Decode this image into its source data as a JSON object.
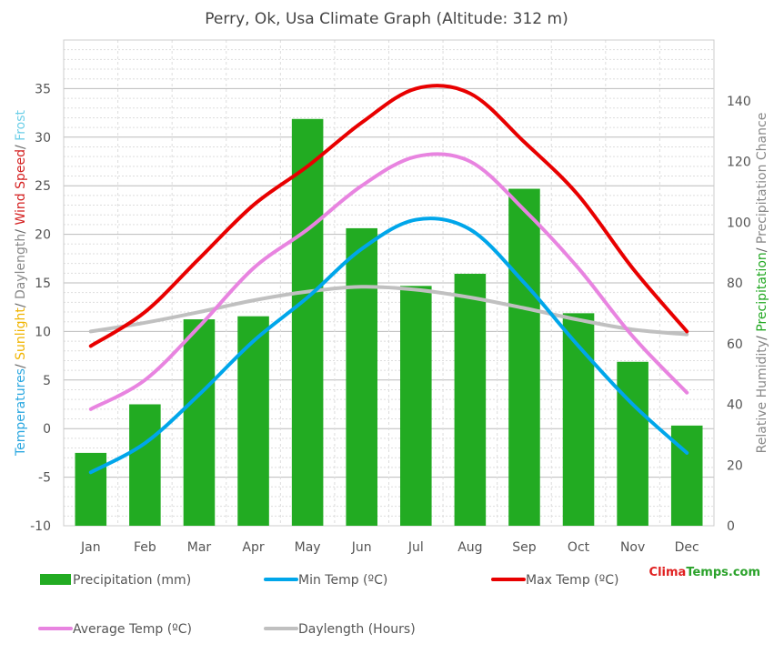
{
  "chart_data": {
    "type": "bar",
    "title": "Perry, Ok, Usa Climate Graph (Altitude: 312 m)",
    "categories": [
      "Jan",
      "Feb",
      "Mar",
      "Apr",
      "May",
      "Jun",
      "Jul",
      "Aug",
      "Sep",
      "Oct",
      "Nov",
      "Dec"
    ],
    "ylabel_left_parts": [
      {
        "text": "Temperatures",
        "color": "#2aa7e0"
      },
      {
        "text": "/ ",
        "color": "#666666"
      },
      {
        "text": "Sunlight",
        "color": "#f0b400"
      },
      {
        "text": "/ ",
        "color": "#666666"
      },
      {
        "text": "Daylength",
        "color": "#888888"
      },
      {
        "text": "/ ",
        "color": "#666666"
      },
      {
        "text": "Wind Speed",
        "color": "#d42020"
      },
      {
        "text": "/ ",
        "color": "#666666"
      },
      {
        "text": "Frost",
        "color": "#6ccfe8"
      }
    ],
    "ylabel_right_parts": [
      {
        "text": "Relative Humidity",
        "color": "#888888"
      },
      {
        "text": "/ ",
        "color": "#666666"
      },
      {
        "text": "Precipitation",
        "color": "#22a822"
      },
      {
        "text": "/ ",
        "color": "#666666"
      },
      {
        "text": "Precipitation Chance",
        "color": "#888888"
      }
    ],
    "ylim_left": [
      -10,
      40
    ],
    "ylim_right": [
      0,
      160
    ],
    "yticks_left": [
      -10,
      -5,
      0,
      5,
      10,
      15,
      20,
      25,
      30,
      35
    ],
    "yticks_right": [
      0,
      20,
      40,
      60,
      80,
      100,
      120,
      140
    ],
    "grid": true,
    "bars": {
      "name": "Precipitation (mm)",
      "axis": "right",
      "color": "#22ab22",
      "values": [
        24,
        40,
        68,
        69,
        134,
        98,
        79,
        83,
        111,
        70,
        54,
        33
      ]
    },
    "series": [
      {
        "name": "Min Temp (ºC)",
        "axis": "left",
        "color": "#00a6ea",
        "values": [
          -4.5,
          -1.5,
          3.5,
          9.0,
          13.5,
          18.5,
          21.5,
          20.5,
          15.0,
          8.5,
          2.5,
          -2.5
        ]
      },
      {
        "name": "Max Temp (ºC)",
        "axis": "left",
        "color": "#e80000",
        "values": [
          8.5,
          12.0,
          17.5,
          23.0,
          27.0,
          31.5,
          35.0,
          34.5,
          29.5,
          24.0,
          16.5,
          10.0
        ]
      },
      {
        "name": "Average Temp (ºC)",
        "axis": "left",
        "color": "#e884e0",
        "values": [
          2.0,
          5.0,
          10.5,
          16.5,
          20.5,
          25.0,
          28.0,
          27.5,
          22.5,
          16.5,
          9.5,
          3.7
        ]
      },
      {
        "name": "Daylength (Hours)",
        "axis": "left",
        "color": "#c0c0c0",
        "values": [
          10.0,
          10.9,
          12.0,
          13.2,
          14.1,
          14.6,
          14.3,
          13.5,
          12.4,
          11.2,
          10.2,
          9.7
        ]
      }
    ],
    "legend_position": "bottom",
    "brand": {
      "part1": "Clima",
      "part2": "Temps",
      "part3": ".com",
      "color1": "#e02020",
      "color2": "#2aa22a"
    }
  }
}
